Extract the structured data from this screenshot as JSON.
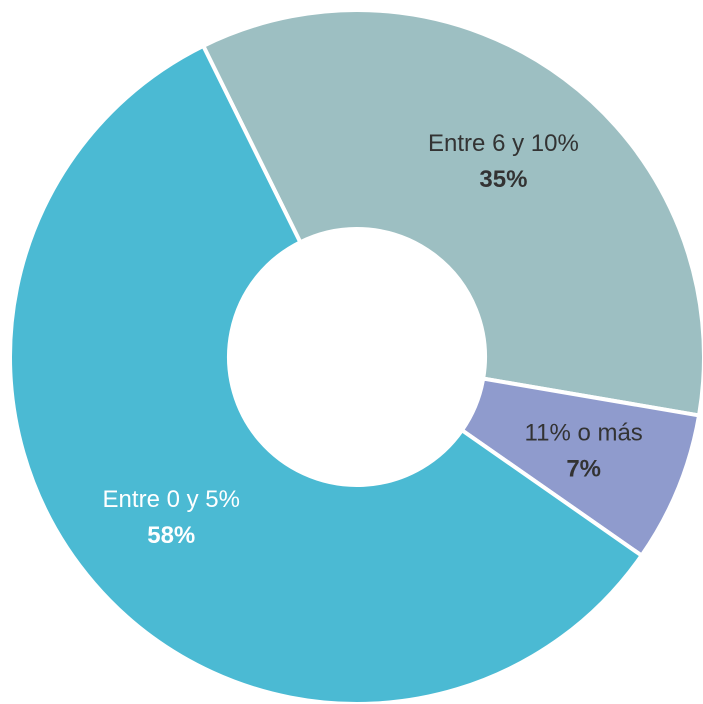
{
  "chart_data": {
    "type": "donut",
    "categories": [
      "Entre 6 y 10%",
      "11% o más",
      "Entre 0 y 5%"
    ],
    "values": [
      35,
      7,
      58
    ],
    "value_labels": [
      "35%",
      "7%",
      "58%"
    ],
    "colors": [
      "#9dbfc2",
      "#8f9bcd",
      "#4bbad3"
    ]
  }
}
